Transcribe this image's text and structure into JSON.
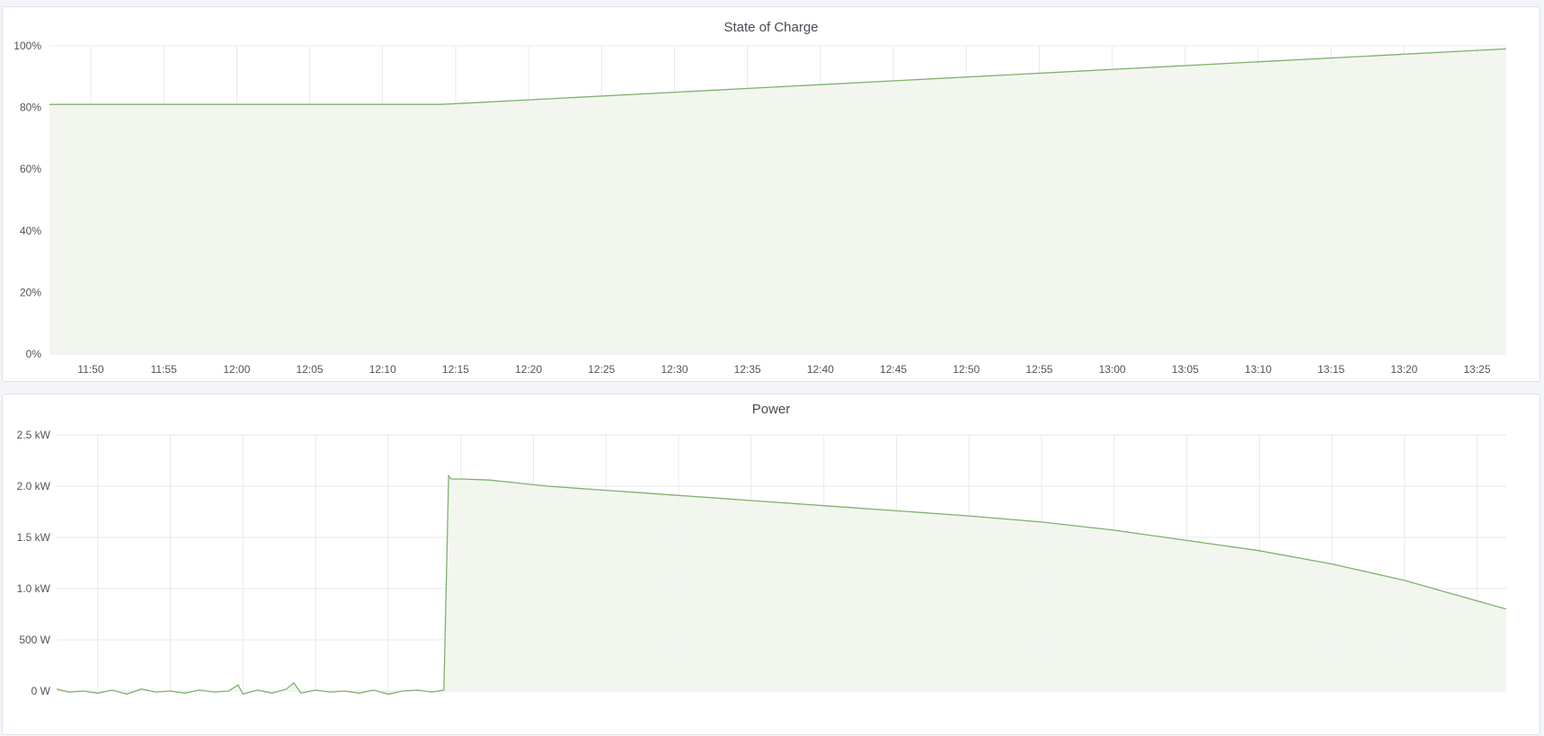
{
  "colors": {
    "series": "#7eb26d",
    "fill": "#f0f5ec",
    "grid": "#e9e9e9",
    "background": "#f4f5f8"
  },
  "chart_data": [
    {
      "type": "area",
      "title": "State of Charge",
      "xlim": [
        "11:47:10",
        "13:27:00"
      ],
      "ylim": [
        0,
        100
      ],
      "y_unit": "%",
      "x_ticks": [
        "11:50",
        "11:55",
        "12:00",
        "12:05",
        "12:10",
        "12:15",
        "12:20",
        "12:25",
        "12:30",
        "12:35",
        "12:40",
        "12:45",
        "12:50",
        "12:55",
        "13:00",
        "13:05",
        "13:10",
        "13:15",
        "13:20",
        "13:25"
      ],
      "y_ticks": [
        "0%",
        "20%",
        "40%",
        "60%",
        "80%",
        "100%"
      ],
      "grid": true,
      "legend": "none",
      "series": [
        {
          "x": [
            "11:47:10",
            "12:14:00",
            "13:27:00"
          ],
          "y": [
            81,
            81,
            99
          ]
        }
      ]
    },
    {
      "type": "area",
      "title": "Power",
      "xlim": [
        "11:47:10",
        "13:27:00"
      ],
      "ylim": [
        0,
        2500
      ],
      "y_unit": "W",
      "x_ticks": [
        "11:50",
        "11:55",
        "12:00",
        "12:05",
        "12:10",
        "12:15",
        "12:20",
        "12:25",
        "12:30",
        "12:35",
        "12:40",
        "12:45",
        "12:50",
        "12:55",
        "13:00",
        "13:05",
        "13:10",
        "13:15",
        "13:20",
        "13:25"
      ],
      "y_ticks": [
        "0 W",
        "500 W",
        "1.0 kW",
        "1.5 kW",
        "2.0 kW",
        "2.5 kW"
      ],
      "grid": true,
      "legend": "none",
      "series": [
        {
          "x": [
            "11:47:10",
            "11:48:00",
            "11:49:00",
            "11:50:00",
            "11:51:00",
            "11:52:00",
            "11:53:00",
            "11:54:00",
            "11:55:00",
            "11:56:00",
            "11:57:00",
            "11:58:00",
            "11:59:00",
            "11:59:40",
            "12:00:00",
            "12:01:00",
            "12:02:00",
            "12:03:00",
            "12:03:30",
            "12:04:00",
            "12:05:00",
            "12:06:00",
            "12:07:00",
            "12:08:00",
            "12:09:00",
            "12:10:00",
            "12:11:00",
            "12:12:00",
            "12:13:00",
            "12:13:50",
            "12:14:10",
            "12:14:20",
            "12:15:00",
            "12:17:00",
            "12:19:00",
            "12:21:00",
            "12:23:00",
            "12:25:00",
            "12:27:00",
            "12:30:00",
            "12:33:00",
            "12:35:00",
            "12:40:00",
            "12:45:00",
            "12:50:00",
            "12:55:00",
            "13:00:00",
            "13:05:00",
            "13:10:00",
            "13:15:00",
            "13:20:00",
            "13:27:00"
          ],
          "y": [
            20,
            -10,
            0,
            -20,
            10,
            -30,
            20,
            -10,
            0,
            -20,
            10,
            -10,
            0,
            60,
            -30,
            10,
            -20,
            20,
            80,
            -20,
            10,
            -10,
            0,
            -20,
            10,
            -30,
            0,
            10,
            -10,
            10,
            2100,
            2070,
            2070,
            2060,
            2030,
            2000,
            1980,
            1960,
            1940,
            1910,
            1880,
            1860,
            1810,
            1760,
            1710,
            1650,
            1570,
            1470,
            1370,
            1240,
            1080,
            800
          ]
        }
      ]
    }
  ]
}
